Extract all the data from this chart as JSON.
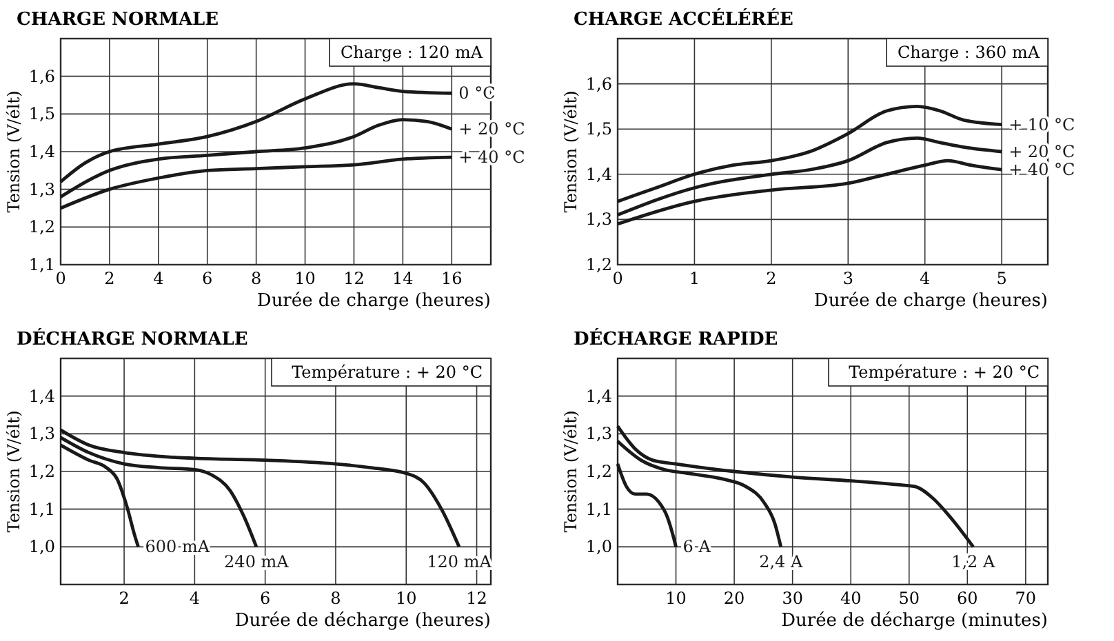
{
  "chart_data": [
    {
      "type": "line",
      "title": "CHARGE NORMALE",
      "xlabel": "Durée de charge (heures)",
      "ylabel": "Tension (V/élt)",
      "annotations": [
        "Charge : 120 mA"
      ],
      "xlim": [
        0,
        17.6
      ],
      "ylim": [
        1.1,
        1.7
      ],
      "xticks": [
        0,
        2,
        4,
        6,
        8,
        10,
        12,
        14,
        16
      ],
      "yticks": [
        {
          "value": 1.1,
          "label": "1,1"
        },
        {
          "value": 1.2,
          "label": "1,2"
        },
        {
          "value": 1.3,
          "label": "1,3"
        },
        {
          "value": 1.4,
          "label": "1,4"
        },
        {
          "value": 1.5,
          "label": "1,5"
        },
        {
          "value": 1.6,
          "label": "1,6"
        },
        {
          "value": 1.7,
          "label": null
        }
      ],
      "grid": true,
      "series": [
        {
          "name": "0 °C",
          "color": "#1a1a1a",
          "x": [
            0,
            1,
            2,
            4,
            6,
            8,
            10,
            12,
            13,
            14,
            16
          ],
          "values": [
            1.32,
            1.37,
            1.4,
            1.42,
            1.44,
            1.48,
            1.54,
            1.58,
            1.57,
            1.56,
            1.555
          ]
        },
        {
          "name": "+ 20 °C",
          "color": "#1a1a1a",
          "x": [
            0,
            2,
            4,
            6,
            8,
            10,
            12,
            13,
            14,
            15,
            16
          ],
          "values": [
            1.28,
            1.35,
            1.38,
            1.39,
            1.4,
            1.41,
            1.44,
            1.47,
            1.485,
            1.48,
            1.46
          ]
        },
        {
          "name": "+ 40 °C",
          "color": "#1a1a1a",
          "x": [
            0,
            2,
            4,
            6,
            8,
            10,
            12,
            14,
            16
          ],
          "values": [
            1.25,
            1.3,
            1.33,
            1.35,
            1.355,
            1.36,
            1.365,
            1.38,
            1.385
          ]
        }
      ]
    },
    {
      "type": "line",
      "title": "CHARGE ACCÉLÉRÉE",
      "xlabel": "Durée de charge (heures)",
      "ylabel": "Tension (V/élt)",
      "annotations": [
        "Charge : 360 mA"
      ],
      "xlim": [
        0,
        5.6
      ],
      "ylim": [
        1.2,
        1.7
      ],
      "xticks": [
        0,
        1,
        2,
        3,
        4,
        5
      ],
      "yticks": [
        {
          "value": 1.2,
          "label": "1,2"
        },
        {
          "value": 1.3,
          "label": "1,3"
        },
        {
          "value": 1.4,
          "label": "1,4"
        },
        {
          "value": 1.5,
          "label": "1,5"
        },
        {
          "value": 1.6,
          "label": "1,6"
        },
        {
          "value": 1.7,
          "label": null
        }
      ],
      "grid": true,
      "series": [
        {
          "name": "+ 10 °C",
          "color": "#1a1a1a",
          "x": [
            0,
            0.5,
            1,
            1.5,
            2,
            2.5,
            3,
            3.5,
            3.9,
            4.2,
            4.5,
            5
          ],
          "values": [
            1.34,
            1.37,
            1.4,
            1.42,
            1.43,
            1.45,
            1.49,
            1.54,
            1.55,
            1.54,
            1.52,
            1.51
          ]
        },
        {
          "name": "+ 20 °C",
          "color": "#1a1a1a",
          "x": [
            0,
            1,
            2,
            2.5,
            3,
            3.5,
            3.9,
            4.2,
            4.5,
            5
          ],
          "values": [
            1.31,
            1.37,
            1.4,
            1.41,
            1.43,
            1.47,
            1.48,
            1.47,
            1.46,
            1.45
          ]
        },
        {
          "name": "+ 40 °C",
          "color": "#1a1a1a",
          "x": [
            0,
            1,
            2,
            3,
            3.5,
            4,
            4.3,
            4.6,
            5
          ],
          "values": [
            1.29,
            1.34,
            1.365,
            1.38,
            1.4,
            1.42,
            1.43,
            1.42,
            1.41
          ]
        }
      ]
    },
    {
      "type": "line",
      "title": "DÉCHARGE NORMALE",
      "xlabel": "Durée de décharge (heures)",
      "ylabel": "Tension (V/élt)",
      "annotations": [
        "Température : + 20 °C"
      ],
      "xlim": [
        0.2,
        12.4
      ],
      "ylim": [
        0.9,
        1.5
      ],
      "xticks": [
        2,
        4,
        6,
        8,
        10,
        12
      ],
      "yticks": [
        {
          "value": 0.9,
          "label": null
        },
        {
          "value": 1.0,
          "label": "1,0"
        },
        {
          "value": 1.1,
          "label": "1,1"
        },
        {
          "value": 1.2,
          "label": "1,2"
        },
        {
          "value": 1.3,
          "label": "1,3"
        },
        {
          "value": 1.4,
          "label": "1,4"
        },
        {
          "value": 1.5,
          "label": null
        }
      ],
      "grid": true,
      "series": [
        {
          "name": "600 mA",
          "color": "#1a1a1a",
          "x": [
            0.2,
            1,
            1.5,
            1.8,
            2.1,
            2.3,
            2.4
          ],
          "values": [
            1.27,
            1.23,
            1.21,
            1.18,
            1.1,
            1.03,
            1.0
          ]
        },
        {
          "name": "240 mA",
          "color": "#1a1a1a",
          "x": [
            0.2,
            1,
            2,
            3,
            4,
            4.5,
            5,
            5.4,
            5.75
          ],
          "values": [
            1.29,
            1.25,
            1.22,
            1.21,
            1.205,
            1.19,
            1.15,
            1.08,
            1.0
          ]
        },
        {
          "name": "120 mA",
          "color": "#1a1a1a",
          "x": [
            0.2,
            1,
            2,
            3,
            4,
            6,
            8,
            9,
            10,
            10.5,
            11,
            11.5
          ],
          "values": [
            1.31,
            1.27,
            1.25,
            1.24,
            1.235,
            1.23,
            1.22,
            1.21,
            1.195,
            1.17,
            1.1,
            1.0
          ]
        }
      ]
    },
    {
      "type": "line",
      "title": "DÉCHARGE RAPIDE",
      "xlabel": "Durée de décharge (minutes)",
      "ylabel": "Tension (V/élt)",
      "annotations": [
        "Température : + 20 °C"
      ],
      "xlim": [
        0,
        73.8
      ],
      "ylim": [
        0.9,
        1.5
      ],
      "xticks": [
        10,
        20,
        30,
        40,
        50,
        60,
        70
      ],
      "yticks": [
        {
          "value": 0.9,
          "label": null
        },
        {
          "value": 1.0,
          "label": "1,0"
        },
        {
          "value": 1.1,
          "label": "1,1"
        },
        {
          "value": 1.2,
          "label": "1,2"
        },
        {
          "value": 1.3,
          "label": "1,3"
        },
        {
          "value": 1.4,
          "label": "1,4"
        },
        {
          "value": 1.5,
          "label": null
        }
      ],
      "grid": true,
      "series": [
        {
          "name": "6 A",
          "color": "#1a1a1a",
          "x": [
            0,
            1.5,
            3,
            5,
            7,
            8.5,
            9.5,
            10
          ],
          "values": [
            1.22,
            1.16,
            1.14,
            1.14,
            1.12,
            1.08,
            1.03,
            1.0
          ]
        },
        {
          "name": "2,4 A",
          "color": "#1a1a1a",
          "x": [
            0,
            4,
            8,
            12,
            18,
            22,
            25,
            27,
            28
          ],
          "values": [
            1.28,
            1.23,
            1.205,
            1.195,
            1.18,
            1.16,
            1.12,
            1.06,
            1.0
          ]
        },
        {
          "name": "1,2 A",
          "color": "#1a1a1a",
          "x": [
            0,
            3,
            6,
            10,
            20,
            30,
            40,
            48,
            51,
            54,
            57,
            61
          ],
          "values": [
            1.32,
            1.26,
            1.23,
            1.22,
            1.2,
            1.185,
            1.175,
            1.165,
            1.16,
            1.13,
            1.08,
            1.0
          ]
        }
      ]
    }
  ]
}
